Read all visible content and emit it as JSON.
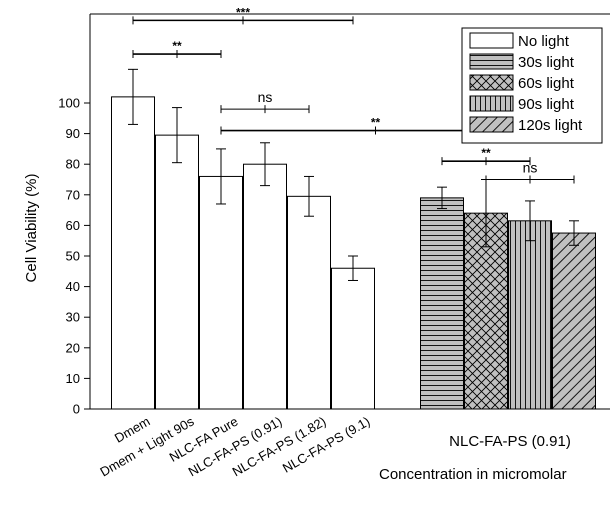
{
  "chart_data": {
    "type": "bar",
    "ylabel": "Cell Viability (%)",
    "ylim": [
      0,
      130
    ],
    "yticks": [
      0,
      10,
      20,
      30,
      40,
      50,
      60,
      70,
      80,
      90,
      100
    ],
    "grid": false,
    "legend_position": "top-right",
    "categories": [
      "Dmem",
      "Dmem + Light 90s",
      "NLC-FA Pure",
      "NLC-FA-PS (0.91)",
      "NLC-FA-PS (1.82)",
      "NLC-FA-PS (9.1)"
    ],
    "series": [
      {
        "name": "No light",
        "pattern": "none",
        "values": [
          102,
          89.5,
          76,
          80,
          69.5,
          46
        ],
        "errors": [
          9,
          9,
          9,
          7,
          6.5,
          4
        ]
      }
    ],
    "group": {
      "label": "NLC-FA-PS (0.91)",
      "sublabel": "Concentration in micromolar",
      "bars": [
        {
          "series": "30s light",
          "pattern": "horizontal",
          "value": 69,
          "error": 3.5
        },
        {
          "series": "60s light",
          "pattern": "crosshatch",
          "value": 64,
          "error": 11
        },
        {
          "series": "90s light",
          "pattern": "vertical",
          "value": 61.5,
          "error": 6.5
        },
        {
          "series": "120s light",
          "pattern": "diagonal",
          "value": 57.5,
          "error": 4
        }
      ]
    },
    "legend": [
      {
        "label": "No light",
        "pattern": "none"
      },
      {
        "label": "30s light",
        "pattern": "horizontal"
      },
      {
        "label": "60s light",
        "pattern": "crosshatch"
      },
      {
        "label": "90s light",
        "pattern": "vertical"
      },
      {
        "label": "120s light",
        "pattern": "diagonal"
      }
    ],
    "annotations": [
      {
        "from": "Dmem",
        "to": "NLC-FA-PS (9.1)",
        "label": "***",
        "y": 127
      },
      {
        "from": "Dmem",
        "to": "NLC-FA Pure",
        "label": "**",
        "y": 116
      },
      {
        "from": "NLC-FA Pure",
        "to": "NLC-FA-PS (1.82)",
        "label": "ns",
        "y": 98
      },
      {
        "from": "NLC-FA Pure",
        "to": "90s light",
        "label": "**",
        "y": 91
      },
      {
        "from": "30s light",
        "to": "90s light",
        "label": "**",
        "y": 81
      },
      {
        "from": "60s light",
        "to": "120s light",
        "label": "ns",
        "y": 75
      }
    ],
    "colors": {
      "bar_fill": "#ffffff",
      "pattern_fill": "#c0c0c0",
      "stroke": "#000000"
    }
  }
}
